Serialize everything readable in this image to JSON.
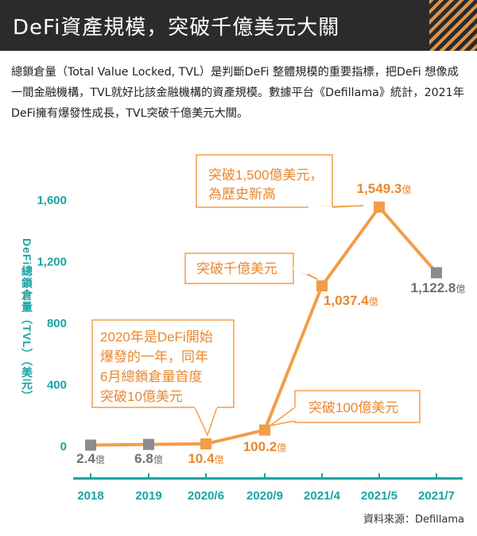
{
  "header": {
    "title": "DeFi資產規模，突破千億美元大關"
  },
  "intro": {
    "text": "總鎖倉量（Total Value Locked, TVL）是判斷DeFi 整體規模的重要指標，把DeFi 想像成一間金融機構，TVL就好比該金融機構的資產規模。數據平台《Defillama》統計，2021年DeFi擁有爆發性成長，TVL突破千億美元大關。"
  },
  "source": "資料來源：Defillama",
  "colors": {
    "accent": "#f29d47",
    "gray": "#8c8c8c",
    "teal": "#1aa3a3",
    "header_bg": "#2b2b2b",
    "value_orange": "#e8882e",
    "value_gray": "#707070"
  },
  "chart_data": {
    "type": "line",
    "categories": [
      "2018",
      "2019",
      "2020/6",
      "2020/9",
      "2021/4",
      "2021/5",
      "2021/7"
    ],
    "values": [
      2.4,
      6.8,
      10.4,
      100.2,
      1037.4,
      1549.3,
      1122.8
    ],
    "value_labels": [
      "2.4",
      "6.8",
      "10.4",
      "100.2",
      "1,037.4",
      "1,549.3",
      "1,122.8"
    ],
    "value_unit": "億",
    "marker_colors": [
      "gray",
      "gray",
      "orange",
      "orange",
      "orange",
      "orange",
      "gray"
    ],
    "ylabel": "DeFi總鎖倉量（TVL）（美元）",
    "ylim": [
      0,
      1600
    ],
    "yticks": [
      0,
      400,
      800,
      1200,
      1600
    ],
    "ytick_labels": [
      "0",
      "400",
      "800",
      "1,200",
      "1,600"
    ],
    "annotations": [
      {
        "lines": [
          "突破1,500億美元，",
          "為歷史新高"
        ],
        "point_index": 5
      },
      {
        "lines": [
          "突破千億美元"
        ],
        "point_index": 4
      },
      {
        "lines": [
          "2020年是DeFi開始",
          "爆發的一年，同年",
          "6月總鎖倉量首度",
          "突破10億美元"
        ],
        "point_index": 2
      },
      {
        "lines": [
          "突破100億美元"
        ],
        "point_index": 3
      }
    ]
  }
}
